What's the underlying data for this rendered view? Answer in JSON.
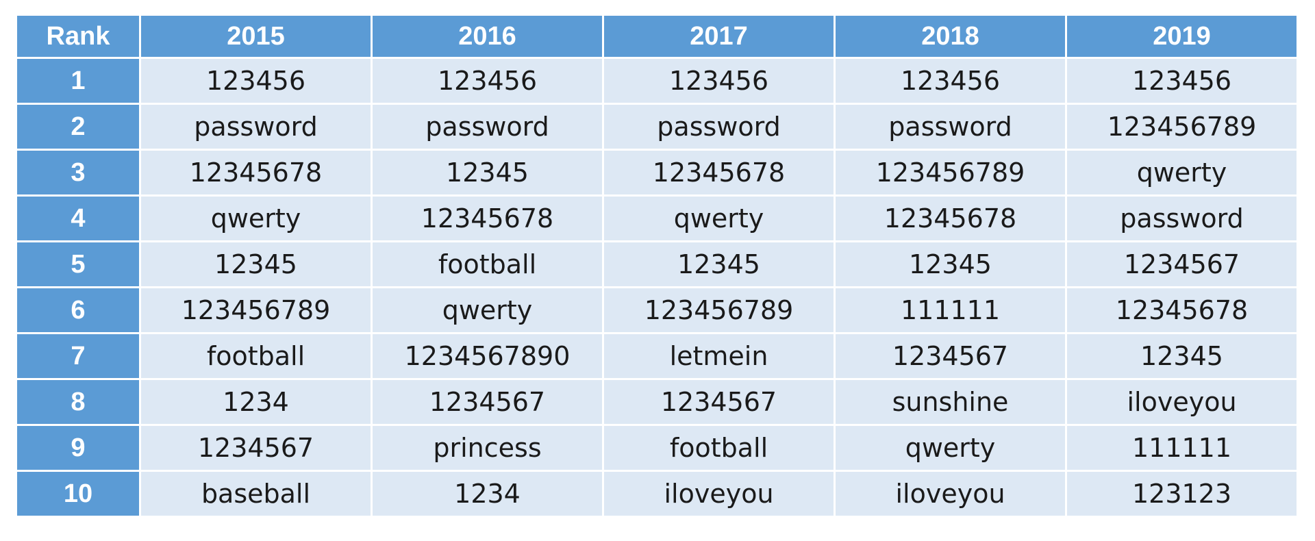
{
  "table": {
    "header": [
      "Rank",
      "2015",
      "2016",
      "2017",
      "2018",
      "2019"
    ],
    "rows": [
      [
        "1",
        "123456",
        "123456",
        "123456",
        "123456",
        "123456"
      ],
      [
        "2",
        "password",
        "password",
        "password",
        "password",
        "123456789"
      ],
      [
        "3",
        "12345678",
        "12345",
        "12345678",
        "123456789",
        "qwerty"
      ],
      [
        "4",
        "qwerty",
        "12345678",
        "qwerty",
        "12345678",
        "password"
      ],
      [
        "5",
        "12345",
        "football",
        "12345",
        "12345",
        "1234567"
      ],
      [
        "6",
        "123456789",
        "qwerty",
        "123456789",
        "111111",
        "12345678"
      ],
      [
        "7",
        "football",
        "1234567890",
        "letmein",
        "1234567",
        "12345"
      ],
      [
        "8",
        "1234",
        "1234567",
        "1234567",
        "sunshine",
        "iloveyou"
      ],
      [
        "9",
        "1234567",
        "princess",
        "football",
        "qwerty",
        "111111"
      ],
      [
        "10",
        "baseball",
        "1234",
        "iloveyou",
        "iloveyou",
        "123123"
      ]
    ]
  }
}
